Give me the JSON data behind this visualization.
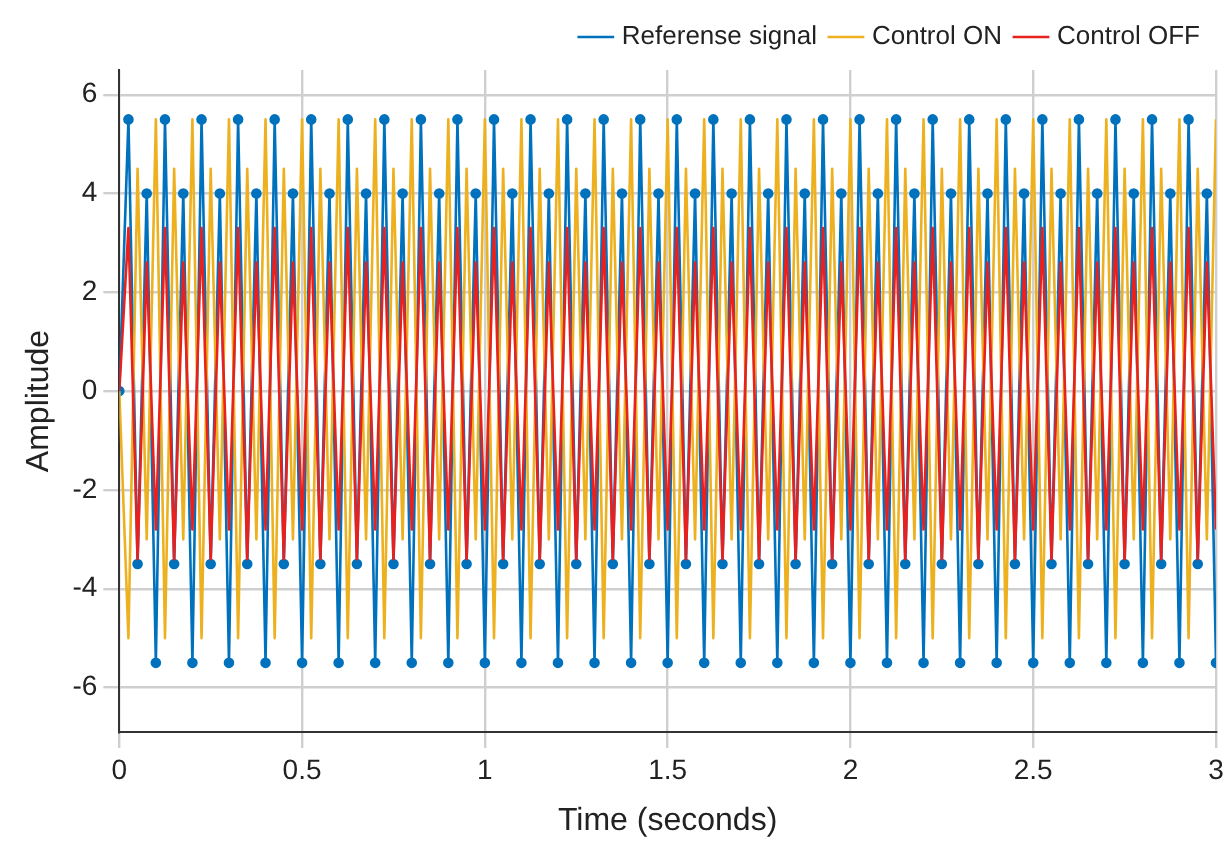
{
  "chart_data": {
    "type": "line",
    "xlabel": "Time (seconds)",
    "ylabel": "Amplitude",
    "x": [
      0,
      0.025,
      0.05,
      0.075,
      0.1,
      0.125,
      0.15,
      0.175,
      0.2,
      0.225,
      0.25,
      0.275,
      0.3,
      0.325,
      0.35,
      0.375,
      0.4,
      0.425,
      0.45,
      0.475,
      0.5,
      0.525,
      0.55,
      0.575,
      0.6,
      0.625,
      0.65,
      0.675,
      0.7,
      0.725,
      0.75,
      0.775,
      0.8,
      0.825,
      0.85,
      0.875,
      0.9,
      0.925,
      0.95,
      0.975,
      1,
      1.025,
      1.05,
      1.075,
      1.1,
      1.125,
      1.15,
      1.175,
      1.2,
      1.225,
      1.25,
      1.275,
      1.3,
      1.325,
      1.35,
      1.375,
      1.4,
      1.425,
      1.45,
      1.475,
      1.5,
      1.525,
      1.55,
      1.575,
      1.6,
      1.625,
      1.65,
      1.675,
      1.7,
      1.725,
      1.75,
      1.775,
      1.8,
      1.825,
      1.85,
      1.875,
      1.9,
      1.925,
      1.95,
      1.975,
      2,
      2.025,
      2.05,
      2.075,
      2.1,
      2.125,
      2.15,
      2.175,
      2.2,
      2.225,
      2.25,
      2.275,
      2.3,
      2.325,
      2.35,
      2.375,
      2.4,
      2.425,
      2.45,
      2.475,
      2.5,
      2.525,
      2.55,
      2.575,
      2.6,
      2.625,
      2.65,
      2.675,
      2.7,
      2.725,
      2.75,
      2.775,
      2.8,
      2.825,
      2.85,
      2.875,
      2.9,
      2.925,
      2.95,
      2.975,
      3
    ],
    "series": [
      {
        "name": "Referense signal",
        "color": "#0072bd",
        "marker": "circle",
        "values": [
          0,
          5.5,
          -3.5,
          4,
          -5.5,
          5.5,
          -3.5,
          4,
          -5.5,
          5.5,
          -3.5,
          4,
          -5.5,
          5.5,
          -3.5,
          4,
          -5.5,
          5.5,
          -3.5,
          4,
          -5.5,
          5.5,
          -3.5,
          4,
          -5.5,
          5.5,
          -3.5,
          4,
          -5.5,
          5.5,
          -3.5,
          4,
          -5.5,
          5.5,
          -3.5,
          4,
          -5.5,
          5.5,
          -3.5,
          4,
          -5.5,
          5.5,
          -3.5,
          4,
          -5.5,
          5.5,
          -3.5,
          4,
          -5.5,
          5.5,
          -3.5,
          4,
          -5.5,
          5.5,
          -3.5,
          4,
          -5.5,
          5.5,
          -3.5,
          4,
          -5.5,
          5.5,
          -3.5,
          4,
          -5.5,
          5.5,
          -3.5,
          4,
          -5.5,
          5.5,
          -3.5,
          4,
          -5.5,
          5.5,
          -3.5,
          4,
          -5.5,
          5.5,
          -3.5,
          4,
          -5.5,
          5.5,
          -3.5,
          4,
          -5.5,
          5.5,
          -3.5,
          4,
          -5.5,
          5.5,
          -3.5,
          4,
          -5.5,
          5.5,
          -3.5,
          4,
          -5.5,
          5.5,
          -3.5,
          4,
          -5.5,
          5.5,
          -3.5,
          4,
          -5.5,
          5.5,
          -3.5,
          4,
          -5.5,
          5.5,
          -3.5,
          4,
          -5.5,
          5.5,
          -3.5,
          4,
          -5.5,
          5.5,
          -3.5,
          4,
          -5.5
        ]
      },
      {
        "name": "Control ON",
        "color": "#edb120",
        "marker": "none",
        "values": [
          0,
          -5,
          4.5,
          -3,
          5.5,
          -5,
          4.5,
          -3,
          5.5,
          -5,
          4.5,
          -3,
          5.5,
          -5,
          4.5,
          -3,
          5.5,
          -5,
          4.5,
          -3,
          5.5,
          -5,
          4.5,
          -3,
          5.5,
          -5,
          4.5,
          -3,
          5.5,
          -5,
          4.5,
          -3,
          5.5,
          -5,
          4.5,
          -3,
          5.5,
          -5,
          4.5,
          -3,
          5.5,
          -5,
          4.5,
          -3,
          5.5,
          -5,
          4.5,
          -3,
          5.5,
          -5,
          4.5,
          -3,
          5.5,
          -5,
          4.5,
          -3,
          5.5,
          -5,
          4.5,
          -3,
          5.5,
          -5,
          4.5,
          -3,
          5.5,
          -5,
          4.5,
          -3,
          5.5,
          -5,
          4.5,
          -3,
          5.5,
          -5,
          4.5,
          -3,
          5.5,
          -5,
          4.5,
          -3,
          5.5,
          -5,
          4.5,
          -3,
          5.5,
          -5,
          4.5,
          -3,
          5.5,
          -5,
          4.5,
          -3,
          5.5,
          -5,
          4.5,
          -3,
          5.5,
          -5,
          4.5,
          -3,
          5.5,
          -5,
          4.5,
          -3,
          5.5,
          -5,
          4.5,
          -3,
          5.5,
          -5,
          4.5,
          -3,
          5.5,
          -5,
          4.5,
          -3,
          5.5,
          -5,
          4.5,
          -3,
          5.5
        ]
      },
      {
        "name": "Control OFF",
        "color": "#e8211f",
        "marker": "none",
        "values": [
          0,
          3.3,
          -3.4,
          2.6,
          -2.8,
          3.3,
          -3.4,
          2.6,
          -2.8,
          3.3,
          -3.4,
          2.6,
          -2.8,
          3.3,
          -3.4,
          2.6,
          -2.8,
          3.3,
          -3.4,
          2.6,
          -2.8,
          3.3,
          -3.4,
          2.6,
          -2.8,
          3.3,
          -3.4,
          2.6,
          -2.8,
          3.3,
          -3.4,
          2.6,
          -2.8,
          3.3,
          -3.4,
          2.6,
          -2.8,
          3.3,
          -3.4,
          2.6,
          -2.8,
          3.3,
          -3.4,
          2.6,
          -2.8,
          3.3,
          -3.4,
          2.6,
          -2.8,
          3.3,
          -3.4,
          2.6,
          -2.8,
          3.3,
          -3.4,
          2.6,
          -2.8,
          3.3,
          -3.4,
          2.6,
          -2.8,
          3.3,
          -3.4,
          2.6,
          -2.8,
          3.3,
          -3.4,
          2.6,
          -2.8,
          3.3,
          -3.4,
          2.6,
          -2.8,
          3.3,
          -3.4,
          2.6,
          -2.8,
          3.3,
          -3.4,
          2.6,
          -2.8,
          3.3,
          -3.4,
          2.6,
          -2.8,
          3.3,
          -3.4,
          2.6,
          -2.8,
          3.3,
          -3.4,
          2.6,
          -2.8,
          3.3,
          -3.4,
          2.6,
          -2.8,
          3.3,
          -3.4,
          2.6,
          -2.8,
          3.3,
          -3.4,
          2.6,
          -2.8,
          3.3,
          -3.4,
          2.6,
          -2.8,
          3.3,
          -3.4,
          2.6,
          -2.8,
          3.3,
          -3.4,
          2.6,
          -2.8,
          3.3,
          -3.4,
          2.6,
          -2.8
        ]
      }
    ],
    "xlim": [
      0,
      3
    ],
    "xticks": [
      0,
      0.5,
      1,
      1.5,
      2,
      2.5,
      3
    ],
    "ylim": [
      -6.9,
      6.5
    ],
    "yticks": [
      -6,
      -4,
      -2,
      0,
      2,
      4,
      6
    ],
    "grid": true,
    "legend": "top right",
    "line_style": "solid"
  }
}
